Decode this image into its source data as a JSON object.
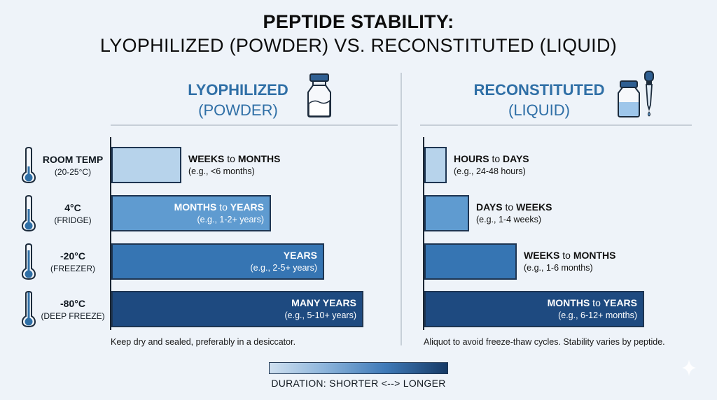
{
  "title": {
    "line1": "PEPTIDE STABILITY:",
    "line2": "LYOPHILIZED (POWDER) VS. RECONSTITUTED (LIQUID)"
  },
  "panels": {
    "left": {
      "name": "LYOPHILIZED",
      "sub": "(POWDER)",
      "icon": "powder-vial-icon",
      "note": "Keep dry and sealed, preferably in a desiccator."
    },
    "right": {
      "name": "RECONSTITUTED",
      "sub": "(LIQUID)",
      "icon": "liquid-vial-dropper-icon",
      "note": "Aliquot to avoid freeze-thaw cycles. Stability varies by peptide."
    }
  },
  "rows": [
    {
      "name": "ROOM TEMP",
      "sub": "(20-25°C)",
      "icon": "thermometer-low-icon"
    },
    {
      "name": "4°C",
      "sub": "(FRIDGE)",
      "icon": "thermometer-icon"
    },
    {
      "name": "-20°C",
      "sub": "(FREEZER)",
      "icon": "thermometer-icon"
    },
    {
      "name": "-80°C",
      "sub": "(DEEP FREEZE)",
      "icon": "thermometer-icon"
    }
  ],
  "chart_data": {
    "type": "bar",
    "orientation": "horizontal",
    "scale": "relative duration (ordinal 1-6: HOURS to DAYS, DAYS to WEEKS, WEEKS to MONTHS, MONTHS to YEARS, YEARS, MANY YEARS)",
    "categories": [
      "ROOM TEMP",
      "4°C",
      "-20°C",
      "-80°C"
    ],
    "series": [
      {
        "name": "LYOPHILIZED (POWDER)",
        "values": [
          3,
          4,
          5,
          6
        ],
        "labels": [
          {
            "strong": "WEEKS",
            "joiner": " to ",
            "strong2": "MONTHS",
            "example": "(e.g., <6 months)"
          },
          {
            "strong": "MONTHS",
            "joiner": " to ",
            "strong2": "YEARS",
            "example": "(e.g., 1-2+ years)"
          },
          {
            "strong": "YEARS",
            "joiner": "",
            "strong2": "",
            "example": "(e.g., 2-5+ years)"
          },
          {
            "strong": "MANY YEARS",
            "joiner": "",
            "strong2": "",
            "example": "(e.g., 5-10+ years)"
          }
        ]
      },
      {
        "name": "RECONSTITUTED (LIQUID)",
        "values": [
          1,
          2,
          3,
          4
        ],
        "labels": [
          {
            "strong": "HOURS",
            "joiner": " to ",
            "strong2": "DAYS",
            "example": "(e.g., 24-48 hours)"
          },
          {
            "strong": "DAYS",
            "joiner": " to ",
            "strong2": "WEEKS",
            "example": "(e.g., 1-4 weeks)"
          },
          {
            "strong": "WEEKS",
            "joiner": " to ",
            "strong2": "MONTHS",
            "example": "(e.g., 1-6 months)"
          },
          {
            "strong": "MONTHS",
            "joiner": " to ",
            "strong2": "YEARS",
            "example": "(e.g., 6-12+ months)"
          }
        ]
      }
    ],
    "colors": [
      "#b7d3eb",
      "#5f9bd0",
      "#3675b3",
      "#1e4a80"
    ],
    "legend": {
      "text": "DURATION: SHORTER <--> LONGER",
      "placement": "bottom-center"
    },
    "grid": false
  }
}
